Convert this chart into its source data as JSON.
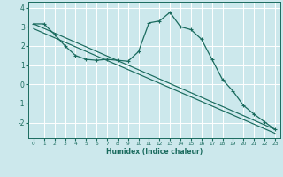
{
  "xlabel": "Humidex (Indice chaleur)",
  "ylabel": "",
  "bg_color": "#cce8ec",
  "grid_color": "#ffffff",
  "line_color": "#1a6b5e",
  "xlim": [
    -0.5,
    23.5
  ],
  "ylim": [
    -2.8,
    4.3
  ],
  "xticks": [
    0,
    1,
    2,
    3,
    4,
    5,
    6,
    7,
    8,
    9,
    10,
    11,
    12,
    13,
    14,
    15,
    16,
    17,
    18,
    19,
    20,
    21,
    22,
    23
  ],
  "yticks": [
    -2,
    -1,
    0,
    1,
    2,
    3,
    4
  ],
  "line1_x": [
    0,
    1,
    2,
    3,
    4,
    5,
    6,
    7,
    8,
    9,
    10,
    11,
    12,
    13,
    14,
    15,
    16,
    17,
    18,
    19,
    20,
    21,
    22,
    23
  ],
  "line1_y": [
    3.15,
    3.15,
    2.6,
    2.0,
    1.5,
    1.3,
    1.25,
    1.3,
    1.25,
    1.2,
    1.7,
    3.2,
    3.3,
    3.75,
    3.0,
    2.85,
    2.35,
    1.3,
    0.25,
    -0.35,
    -1.1,
    -1.55,
    -1.95,
    -2.35
  ],
  "line2_x": [
    0,
    23
  ],
  "line2_y": [
    3.15,
    -2.35
  ],
  "line3_x": [
    0,
    23
  ],
  "line3_y": [
    2.9,
    -2.55
  ]
}
